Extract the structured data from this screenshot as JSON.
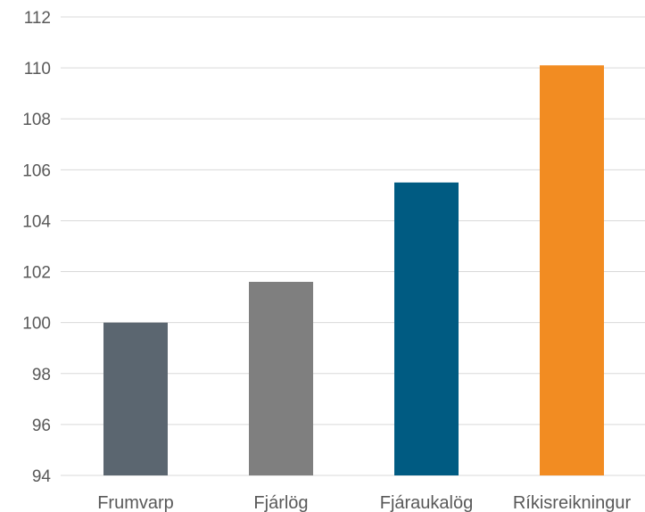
{
  "chart_data": {
    "type": "bar",
    "title": "",
    "xlabel": "",
    "ylabel": "",
    "ylim": [
      94,
      112
    ],
    "yticks": [
      94,
      96,
      98,
      100,
      102,
      104,
      106,
      108,
      110,
      112
    ],
    "ytick_labels": [
      "94",
      "96",
      "98",
      "100",
      "102",
      "104",
      "106",
      "108",
      "110",
      "112"
    ],
    "grid": true,
    "legend": "none",
    "categories": [
      "Frumvarp",
      "Fjárlög",
      "Fjáraukalög",
      "Ríkisreikningur"
    ],
    "values": [
      100.0,
      101.6,
      105.5,
      110.1
    ],
    "colors": [
      "#5b6670",
      "#7f7f7f",
      "#005b82",
      "#f28c22"
    ]
  }
}
